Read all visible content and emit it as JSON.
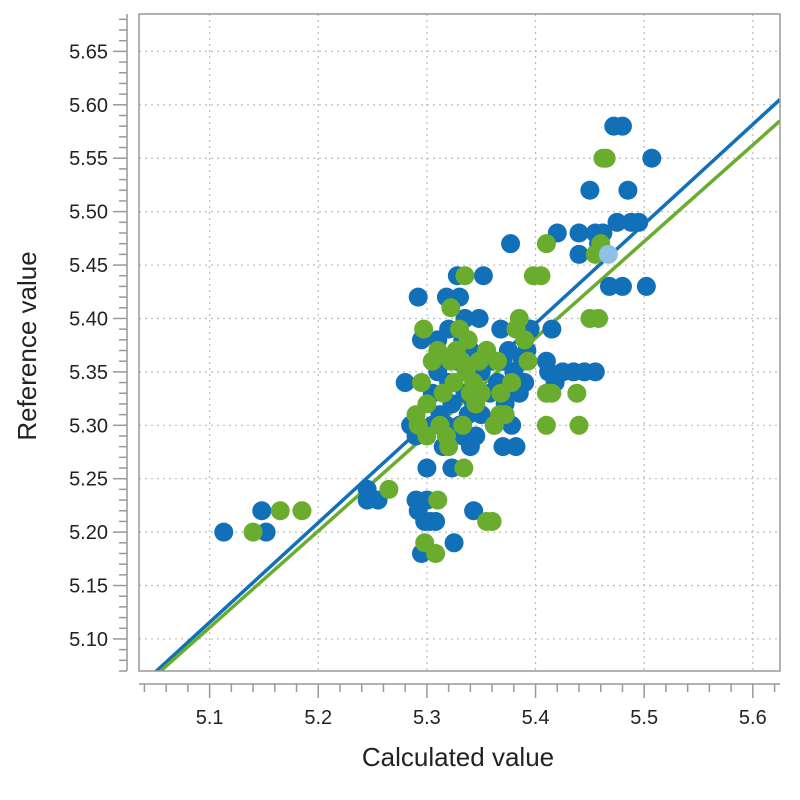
{
  "chart_data": {
    "type": "scatter",
    "xlabel": "Calculated value",
    "ylabel": "Reference value",
    "xlim": [
      5.035,
      5.625
    ],
    "ylim": [
      5.07,
      5.685
    ],
    "x_ticks": [
      5.1,
      5.2,
      5.3,
      5.4,
      5.5,
      5.6
    ],
    "x_tick_labels": [
      "5.1",
      "5.2",
      "5.3",
      "5.4",
      "5.5",
      "5.6"
    ],
    "y_ticks": [
      5.1,
      5.15,
      5.2,
      5.25,
      5.3,
      5.35,
      5.4,
      5.45,
      5.5,
      5.55,
      5.6,
      5.65
    ],
    "y_tick_labels": [
      "5.10",
      "5.15",
      "5.20",
      "5.25",
      "5.30",
      "5.35",
      "5.40",
      "5.45",
      "5.50",
      "5.55",
      "5.60",
      "5.65"
    ],
    "grid": true,
    "colors": {
      "blue": "#1170b8",
      "green": "#6aad2e",
      "highlight": "#8fc0e8",
      "axis": "#999999",
      "grid": "#bbbbbb"
    },
    "series": [
      {
        "color": "#1170b8",
        "points": [
          [
            5.113,
            5.2
          ],
          [
            5.148,
            5.22
          ],
          [
            5.152,
            5.2
          ],
          [
            5.245,
            5.24
          ],
          [
            5.245,
            5.23
          ],
          [
            5.255,
            5.23
          ],
          [
            5.28,
            5.34
          ],
          [
            5.285,
            5.3
          ],
          [
            5.29,
            5.29
          ],
          [
            5.292,
            5.42
          ],
          [
            5.295,
            5.38
          ],
          [
            5.29,
            5.23
          ],
          [
            5.292,
            5.22
          ],
          [
            5.298,
            5.21
          ],
          [
            5.295,
            5.18
          ],
          [
            5.3,
            5.23
          ],
          [
            5.303,
            5.21
          ],
          [
            5.3,
            5.26
          ],
          [
            5.305,
            5.36
          ],
          [
            5.305,
            5.33
          ],
          [
            5.305,
            5.3
          ],
          [
            5.308,
            5.21
          ],
          [
            5.31,
            5.38
          ],
          [
            5.31,
            5.35
          ],
          [
            5.312,
            5.31
          ],
          [
            5.315,
            5.36
          ],
          [
            5.315,
            5.28
          ],
          [
            5.318,
            5.42
          ],
          [
            5.318,
            5.3
          ],
          [
            5.32,
            5.39
          ],
          [
            5.32,
            5.34
          ],
          [
            5.323,
            5.32
          ],
          [
            5.323,
            5.26
          ],
          [
            5.325,
            5.19
          ],
          [
            5.328,
            5.44
          ],
          [
            5.328,
            5.36
          ],
          [
            5.33,
            5.42
          ],
          [
            5.33,
            5.3
          ],
          [
            5.333,
            5.38
          ],
          [
            5.333,
            5.29
          ],
          [
            5.335,
            5.4
          ],
          [
            5.335,
            5.33
          ],
          [
            5.338,
            5.35
          ],
          [
            5.338,
            5.31
          ],
          [
            5.34,
            5.37
          ],
          [
            5.34,
            5.28
          ],
          [
            5.343,
            5.32
          ],
          [
            5.343,
            5.22
          ],
          [
            5.345,
            5.36
          ],
          [
            5.345,
            5.29
          ],
          [
            5.348,
            5.4
          ],
          [
            5.35,
            5.35
          ],
          [
            5.35,
            5.31
          ],
          [
            5.352,
            5.44
          ],
          [
            5.355,
            5.37
          ],
          [
            5.358,
            5.33
          ],
          [
            5.36,
            5.36
          ],
          [
            5.362,
            5.3
          ],
          [
            5.365,
            5.34
          ],
          [
            5.368,
            5.39
          ],
          [
            5.37,
            5.36
          ],
          [
            5.37,
            5.28
          ],
          [
            5.372,
            5.32
          ],
          [
            5.375,
            5.37
          ],
          [
            5.377,
            5.47
          ],
          [
            5.378,
            5.3
          ],
          [
            5.38,
            5.35
          ],
          [
            5.382,
            5.28
          ],
          [
            5.385,
            5.33
          ],
          [
            5.388,
            5.36
          ],
          [
            5.39,
            5.34
          ],
          [
            5.392,
            5.37
          ],
          [
            5.395,
            5.39
          ],
          [
            5.41,
            5.36
          ],
          [
            5.412,
            5.35
          ],
          [
            5.415,
            5.39
          ],
          [
            5.418,
            5.34
          ],
          [
            5.42,
            5.48
          ],
          [
            5.425,
            5.35
          ],
          [
            5.435,
            5.35
          ],
          [
            5.44,
            5.48
          ],
          [
            5.44,
            5.46
          ],
          [
            5.445,
            5.35
          ],
          [
            5.45,
            5.52
          ],
          [
            5.455,
            5.35
          ],
          [
            5.455,
            5.48
          ],
          [
            5.458,
            5.47
          ],
          [
            5.462,
            5.48
          ],
          [
            5.468,
            5.43
          ],
          [
            5.472,
            5.58
          ],
          [
            5.475,
            5.49
          ],
          [
            5.48,
            5.58
          ],
          [
            5.48,
            5.43
          ],
          [
            5.485,
            5.52
          ],
          [
            5.488,
            5.49
          ],
          [
            5.495,
            5.49
          ],
          [
            5.502,
            5.43
          ],
          [
            5.507,
            5.55
          ]
        ]
      },
      {
        "color": "#6aad2e",
        "points": [
          [
            5.14,
            5.2
          ],
          [
            5.165,
            5.22
          ],
          [
            5.185,
            5.22
          ],
          [
            5.265,
            5.24
          ],
          [
            5.29,
            5.31
          ],
          [
            5.292,
            5.3
          ],
          [
            5.295,
            5.34
          ],
          [
            5.297,
            5.39
          ],
          [
            5.298,
            5.19
          ],
          [
            5.3,
            5.32
          ],
          [
            5.3,
            5.29
          ],
          [
            5.305,
            5.36
          ],
          [
            5.308,
            5.18
          ],
          [
            5.31,
            5.37
          ],
          [
            5.31,
            5.23
          ],
          [
            5.312,
            5.3
          ],
          [
            5.315,
            5.33
          ],
          [
            5.318,
            5.29
          ],
          [
            5.32,
            5.28
          ],
          [
            5.322,
            5.36
          ],
          [
            5.322,
            5.41
          ],
          [
            5.325,
            5.34
          ],
          [
            5.327,
            5.37
          ],
          [
            5.33,
            5.39
          ],
          [
            5.332,
            5.36
          ],
          [
            5.333,
            5.3
          ],
          [
            5.334,
            5.26
          ],
          [
            5.335,
            5.44
          ],
          [
            5.336,
            5.35
          ],
          [
            5.338,
            5.38
          ],
          [
            5.34,
            5.33
          ],
          [
            5.343,
            5.34
          ],
          [
            5.345,
            5.32
          ],
          [
            5.348,
            5.36
          ],
          [
            5.35,
            5.33
          ],
          [
            5.355,
            5.21
          ],
          [
            5.355,
            5.37
          ],
          [
            5.36,
            5.21
          ],
          [
            5.362,
            5.3
          ],
          [
            5.365,
            5.36
          ],
          [
            5.367,
            5.31
          ],
          [
            5.368,
            5.33
          ],
          [
            5.372,
            5.31
          ],
          [
            5.378,
            5.34
          ],
          [
            5.382,
            5.39
          ],
          [
            5.385,
            5.4
          ],
          [
            5.39,
            5.38
          ],
          [
            5.393,
            5.36
          ],
          [
            5.398,
            5.44
          ],
          [
            5.405,
            5.44
          ],
          [
            5.41,
            5.47
          ],
          [
            5.41,
            5.33
          ],
          [
            5.41,
            5.3
          ],
          [
            5.415,
            5.33
          ],
          [
            5.438,
            5.33
          ],
          [
            5.44,
            5.3
          ],
          [
            5.45,
            5.4
          ],
          [
            5.455,
            5.46
          ],
          [
            5.458,
            5.4
          ],
          [
            5.46,
            5.47
          ],
          [
            5.462,
            5.55
          ],
          [
            5.465,
            5.55
          ]
        ]
      }
    ],
    "highlight_point": [
      5.467,
      5.46
    ],
    "fit_lines": [
      {
        "color": "#1170b8",
        "from": [
          5.035,
          5.055
        ],
        "to": [
          5.625,
          5.605
        ]
      },
      {
        "color": "#6aad2e",
        "from": [
          5.035,
          5.052
        ],
        "to": [
          5.625,
          5.585
        ]
      }
    ]
  }
}
